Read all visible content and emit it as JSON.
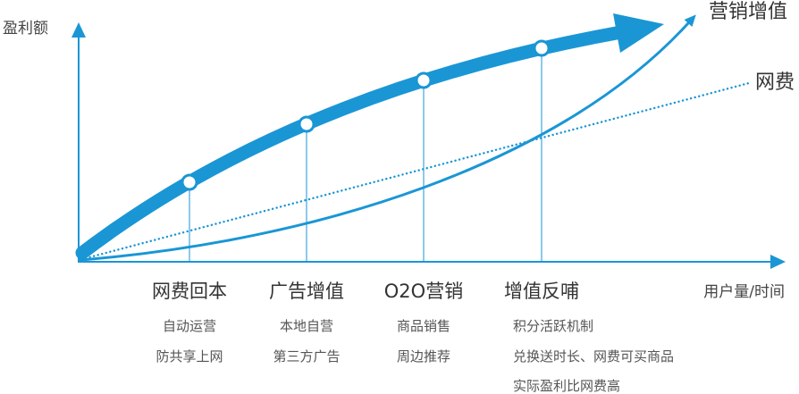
{
  "colors": {
    "accent": "#1a96d5",
    "title_text": "#333333",
    "item_text": "#555555",
    "axis_text": "#444444"
  },
  "axes": {
    "y_label": "盈利额",
    "x_label": "用户量/时间"
  },
  "curves": {
    "marketing": {
      "label": "营销增值"
    },
    "fee": {
      "label": "网费"
    }
  },
  "stages": [
    {
      "title": "网费回本",
      "items": [
        "自动运营",
        "防共享上网"
      ]
    },
    {
      "title": "广告增值",
      "items": [
        "本地自营",
        "第三方广告"
      ]
    },
    {
      "title": "O2O营销",
      "items": [
        "商品销售",
        "周边推荐"
      ]
    },
    {
      "title": "增值反哺",
      "items": [
        "积分活跃机制",
        "兑换送时长、网费可买商品",
        "实际盈利比网费高"
      ]
    }
  ]
}
